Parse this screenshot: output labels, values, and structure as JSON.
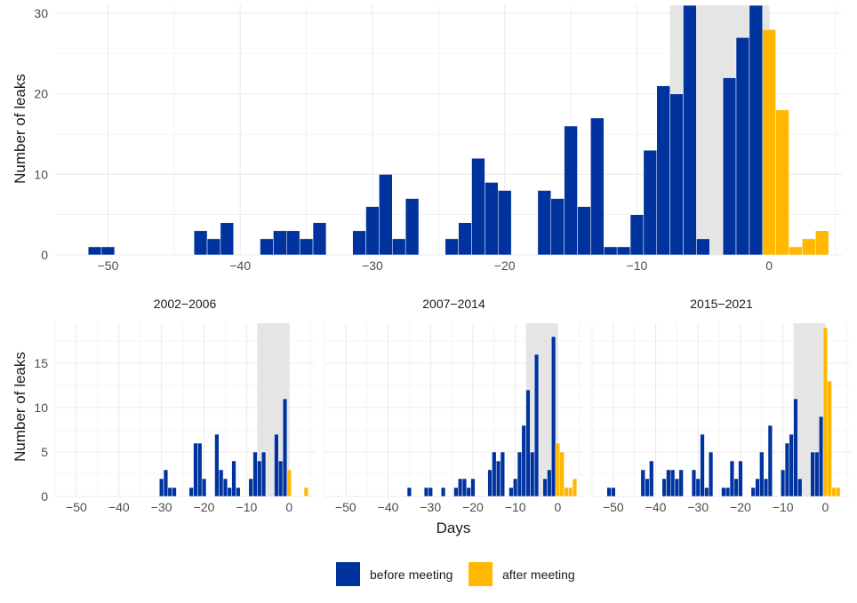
{
  "chart_data": [
    {
      "type": "bar",
      "panel": "all",
      "xlabel": "",
      "ylabel": "Number of leaks",
      "xlim": [
        -54,
        5.5
      ],
      "ylim": [
        0,
        31
      ],
      "xticks": [
        -50,
        -40,
        -30,
        -20,
        -10,
        0
      ],
      "yticks": [
        0,
        10,
        20,
        30
      ],
      "shaded_window": [
        -7.5,
        0
      ],
      "before": [
        [
          -51,
          1
        ],
        [
          -50,
          1
        ],
        [
          -43,
          3
        ],
        [
          -42,
          2
        ],
        [
          -41,
          4
        ],
        [
          -38,
          2
        ],
        [
          -37,
          3
        ],
        [
          -36,
          3
        ],
        [
          -35,
          2
        ],
        [
          -34,
          4
        ],
        [
          -31,
          3
        ],
        [
          -30,
          6
        ],
        [
          -29,
          10
        ],
        [
          -28,
          2
        ],
        [
          -27,
          7
        ],
        [
          -24,
          2
        ],
        [
          -23,
          4
        ],
        [
          -22,
          12
        ],
        [
          -21,
          9
        ],
        [
          -20,
          8
        ],
        [
          -17,
          8
        ],
        [
          -16,
          7
        ],
        [
          -15,
          16
        ],
        [
          -14,
          6
        ],
        [
          -13,
          17
        ],
        [
          -12,
          1
        ],
        [
          -11,
          1
        ],
        [
          -10,
          5
        ],
        [
          -9,
          13
        ],
        [
          -8,
          21
        ],
        [
          -7,
          20
        ],
        [
          -6,
          31
        ],
        [
          -5,
          2
        ],
        [
          -3,
          22
        ],
        [
          -2,
          27
        ],
        [
          -1,
          31
        ],
        [
          0,
          4
        ]
      ],
      "after": [
        [
          0,
          28
        ],
        [
          1,
          18
        ],
        [
          2,
          1
        ],
        [
          3,
          2
        ],
        [
          4,
          3
        ]
      ]
    },
    {
      "type": "bar",
      "panel": "2002-2006",
      "title": "2002−2006",
      "ylabel": "Number of leaks",
      "xlim": [
        -55,
        6
      ],
      "ylim": [
        0,
        19.5
      ],
      "xticks": [
        -50,
        -40,
        -30,
        -20,
        -10,
        0
      ],
      "yticks": [
        0,
        5,
        10,
        15
      ],
      "shaded_window": [
        -7.5,
        0
      ],
      "before": [
        [
          -30,
          2
        ],
        [
          -29,
          3
        ],
        [
          -28,
          1
        ],
        [
          -27,
          1
        ],
        [
          -23,
          1
        ],
        [
          -22,
          6
        ],
        [
          -21,
          6
        ],
        [
          -20,
          2
        ],
        [
          -17,
          7
        ],
        [
          -16,
          3
        ],
        [
          -15,
          2
        ],
        [
          -14,
          1
        ],
        [
          -13,
          4
        ],
        [
          -12,
          1
        ],
        [
          -9,
          2
        ],
        [
          -8,
          5
        ],
        [
          -7,
          4
        ],
        [
          -6,
          5
        ],
        [
          -3,
          7
        ],
        [
          -2,
          4
        ],
        [
          -1,
          11
        ],
        [
          0,
          1
        ]
      ],
      "after": [
        [
          0,
          3
        ],
        [
          4,
          1
        ]
      ]
    },
    {
      "type": "bar",
      "panel": "2007-2014",
      "title": "2007−2014",
      "xlim": [
        -55,
        6
      ],
      "ylim": [
        0,
        19.5
      ],
      "xticks": [
        -50,
        -40,
        -30,
        -20,
        -10,
        0
      ],
      "yticks": [
        0,
        5,
        10,
        15
      ],
      "shaded_window": [
        -7.5,
        0
      ],
      "before": [
        [
          -35,
          1
        ],
        [
          -31,
          1
        ],
        [
          -30,
          1
        ],
        [
          -27,
          1
        ],
        [
          -24,
          1
        ],
        [
          -23,
          2
        ],
        [
          -22,
          2
        ],
        [
          -21,
          1
        ],
        [
          -20,
          2
        ],
        [
          -16,
          3
        ],
        [
          -15,
          5
        ],
        [
          -14,
          4
        ],
        [
          -13,
          5
        ],
        [
          -11,
          1
        ],
        [
          -10,
          2
        ],
        [
          -9,
          5
        ],
        [
          -8,
          8
        ],
        [
          -7,
          12
        ],
        [
          -6,
          5
        ],
        [
          -5,
          16
        ],
        [
          -3,
          2
        ],
        [
          -2,
          3
        ],
        [
          -1,
          18
        ],
        [
          0,
          1
        ]
      ],
      "after": [
        [
          0,
          6
        ],
        [
          1,
          5
        ],
        [
          2,
          1
        ],
        [
          3,
          1
        ],
        [
          4,
          2
        ]
      ]
    },
    {
      "type": "bar",
      "panel": "2015-2021",
      "title": "2015−2021",
      "xlim": [
        -55,
        6
      ],
      "ylim": [
        0,
        19.5
      ],
      "xticks": [
        -50,
        -40,
        -30,
        -20,
        -10,
        0
      ],
      "yticks": [
        0,
        5,
        10,
        15
      ],
      "shaded_window": [
        -7.5,
        0
      ],
      "before": [
        [
          -51,
          1
        ],
        [
          -50,
          1
        ],
        [
          -43,
          3
        ],
        [
          -42,
          2
        ],
        [
          -41,
          4
        ],
        [
          -38,
          2
        ],
        [
          -37,
          3
        ],
        [
          -36,
          3
        ],
        [
          -35,
          2
        ],
        [
          -34,
          3
        ],
        [
          -31,
          3
        ],
        [
          -30,
          2
        ],
        [
          -29,
          7
        ],
        [
          -28,
          1
        ],
        [
          -27,
          5
        ],
        [
          -24,
          1
        ],
        [
          -23,
          1
        ],
        [
          -22,
          4
        ],
        [
          -21,
          2
        ],
        [
          -20,
          4
        ],
        [
          -17,
          1
        ],
        [
          -16,
          2
        ],
        [
          -15,
          5
        ],
        [
          -14,
          2
        ],
        [
          -13,
          8
        ],
        [
          -10,
          3
        ],
        [
          -9,
          6
        ],
        [
          -8,
          7
        ],
        [
          -7,
          11
        ],
        [
          -6,
          2
        ],
        [
          -3,
          5
        ],
        [
          -2,
          5
        ],
        [
          -1,
          9
        ],
        [
          0,
          2
        ]
      ],
      "after": [
        [
          0,
          19
        ],
        [
          1,
          13
        ],
        [
          2,
          1
        ],
        [
          3,
          1
        ]
      ]
    }
  ],
  "labels": {
    "y_axis_top": "Number of leaks",
    "y_axis_bottom": "Number of leaks",
    "x_axis": "Days"
  },
  "legend": {
    "items": [
      {
        "label": "before meeting",
        "color": "#00339e"
      },
      {
        "label": "after meeting",
        "color": "#ffb700"
      }
    ]
  },
  "colors": {
    "before": "#00339e",
    "after": "#ffb700",
    "shade": "#e5e5e5",
    "grid": "#ebebeb"
  }
}
